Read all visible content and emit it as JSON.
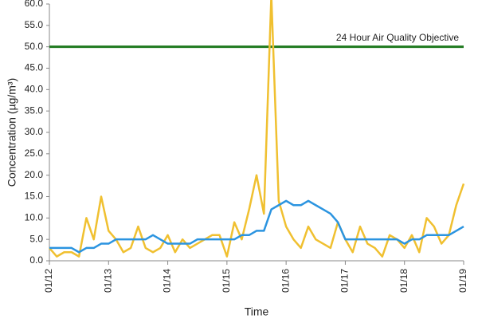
{
  "chart_data": {
    "type": "line",
    "x_label": "Time",
    "y_label": "Concentration (µg/m³)",
    "x": [
      12,
      12.125,
      12.25,
      12.375,
      12.5,
      12.625,
      12.75,
      12.875,
      13,
      13.125,
      13.25,
      13.375,
      13.5,
      13.625,
      13.75,
      13.875,
      14,
      14.125,
      14.25,
      14.375,
      14.5,
      14.625,
      14.75,
      14.875,
      15,
      15.125,
      15.25,
      15.375,
      15.5,
      15.625,
      15.75,
      15.875,
      16,
      16.125,
      16.25,
      16.375,
      16.5,
      16.625,
      16.75,
      16.875,
      17,
      17.125,
      17.25,
      17.375,
      17.5,
      17.625,
      17.75,
      17.875,
      18,
      18.125,
      18.25,
      18.375,
      18.5,
      18.625,
      18.75,
      18.875,
      19
    ],
    "series": [
      {
        "color": "#f0c030",
        "values": [
          3,
          1,
          2,
          2,
          1,
          10,
          5,
          15,
          7,
          5,
          2,
          3,
          8,
          3,
          2,
          3,
          6,
          2,
          5,
          3,
          4,
          5,
          6,
          6,
          1,
          9,
          5,
          12,
          20,
          11,
          62,
          14,
          8,
          5,
          3,
          8,
          5,
          4,
          3,
          9,
          5,
          2,
          8,
          4,
          3,
          1,
          6,
          5,
          3,
          6,
          2,
          10,
          8,
          4,
          6,
          13,
          18
        ]
      },
      {
        "color": "#2b94e0",
        "values": [
          3,
          3,
          3,
          3,
          2,
          3,
          3,
          4,
          4,
          5,
          5,
          5,
          5,
          5,
          6,
          5,
          4,
          4,
          4,
          4,
          5,
          5,
          5,
          5,
          5,
          5,
          6,
          6,
          7,
          7,
          12,
          13,
          14,
          13,
          13,
          14,
          13,
          12,
          11,
          9,
          5,
          5,
          5,
          5,
          5,
          5,
          5,
          5,
          4,
          5,
          5,
          6,
          6,
          6,
          6,
          7,
          8
        ]
      }
    ],
    "reference_line": {
      "value": 50,
      "label": "24 Hour Air Quality Objective",
      "color": "#1f7a1f"
    },
    "xlim": [
      12,
      19
    ],
    "xticks": [
      {
        "value": 12,
        "label": "01/12"
      },
      {
        "value": 13,
        "label": "01/13"
      },
      {
        "value": 14,
        "label": "01/14"
      },
      {
        "value": 15,
        "label": "01/15"
      },
      {
        "value": 16,
        "label": "01/16"
      },
      {
        "value": 17,
        "label": "01/17"
      },
      {
        "value": 18,
        "label": "01/18"
      },
      {
        "value": 19,
        "label": "01/19"
      }
    ],
    "ylim": [
      0,
      60
    ],
    "yticks": [
      {
        "value": 0,
        "label": "0.0"
      },
      {
        "value": 5,
        "label": "5.0"
      },
      {
        "value": 10,
        "label": "10.0"
      },
      {
        "value": 15,
        "label": "15.0"
      },
      {
        "value": 20,
        "label": "20.0"
      },
      {
        "value": 25,
        "label": "25.0"
      },
      {
        "value": 30,
        "label": "30.0"
      },
      {
        "value": 35,
        "label": "35.0"
      },
      {
        "value": 40,
        "label": "40.0"
      },
      {
        "value": 45,
        "label": "45.0"
      },
      {
        "value": 50,
        "label": "50.0"
      },
      {
        "value": 55,
        "label": "55.0"
      },
      {
        "value": 60,
        "label": "60.0"
      }
    ],
    "grid": false
  }
}
